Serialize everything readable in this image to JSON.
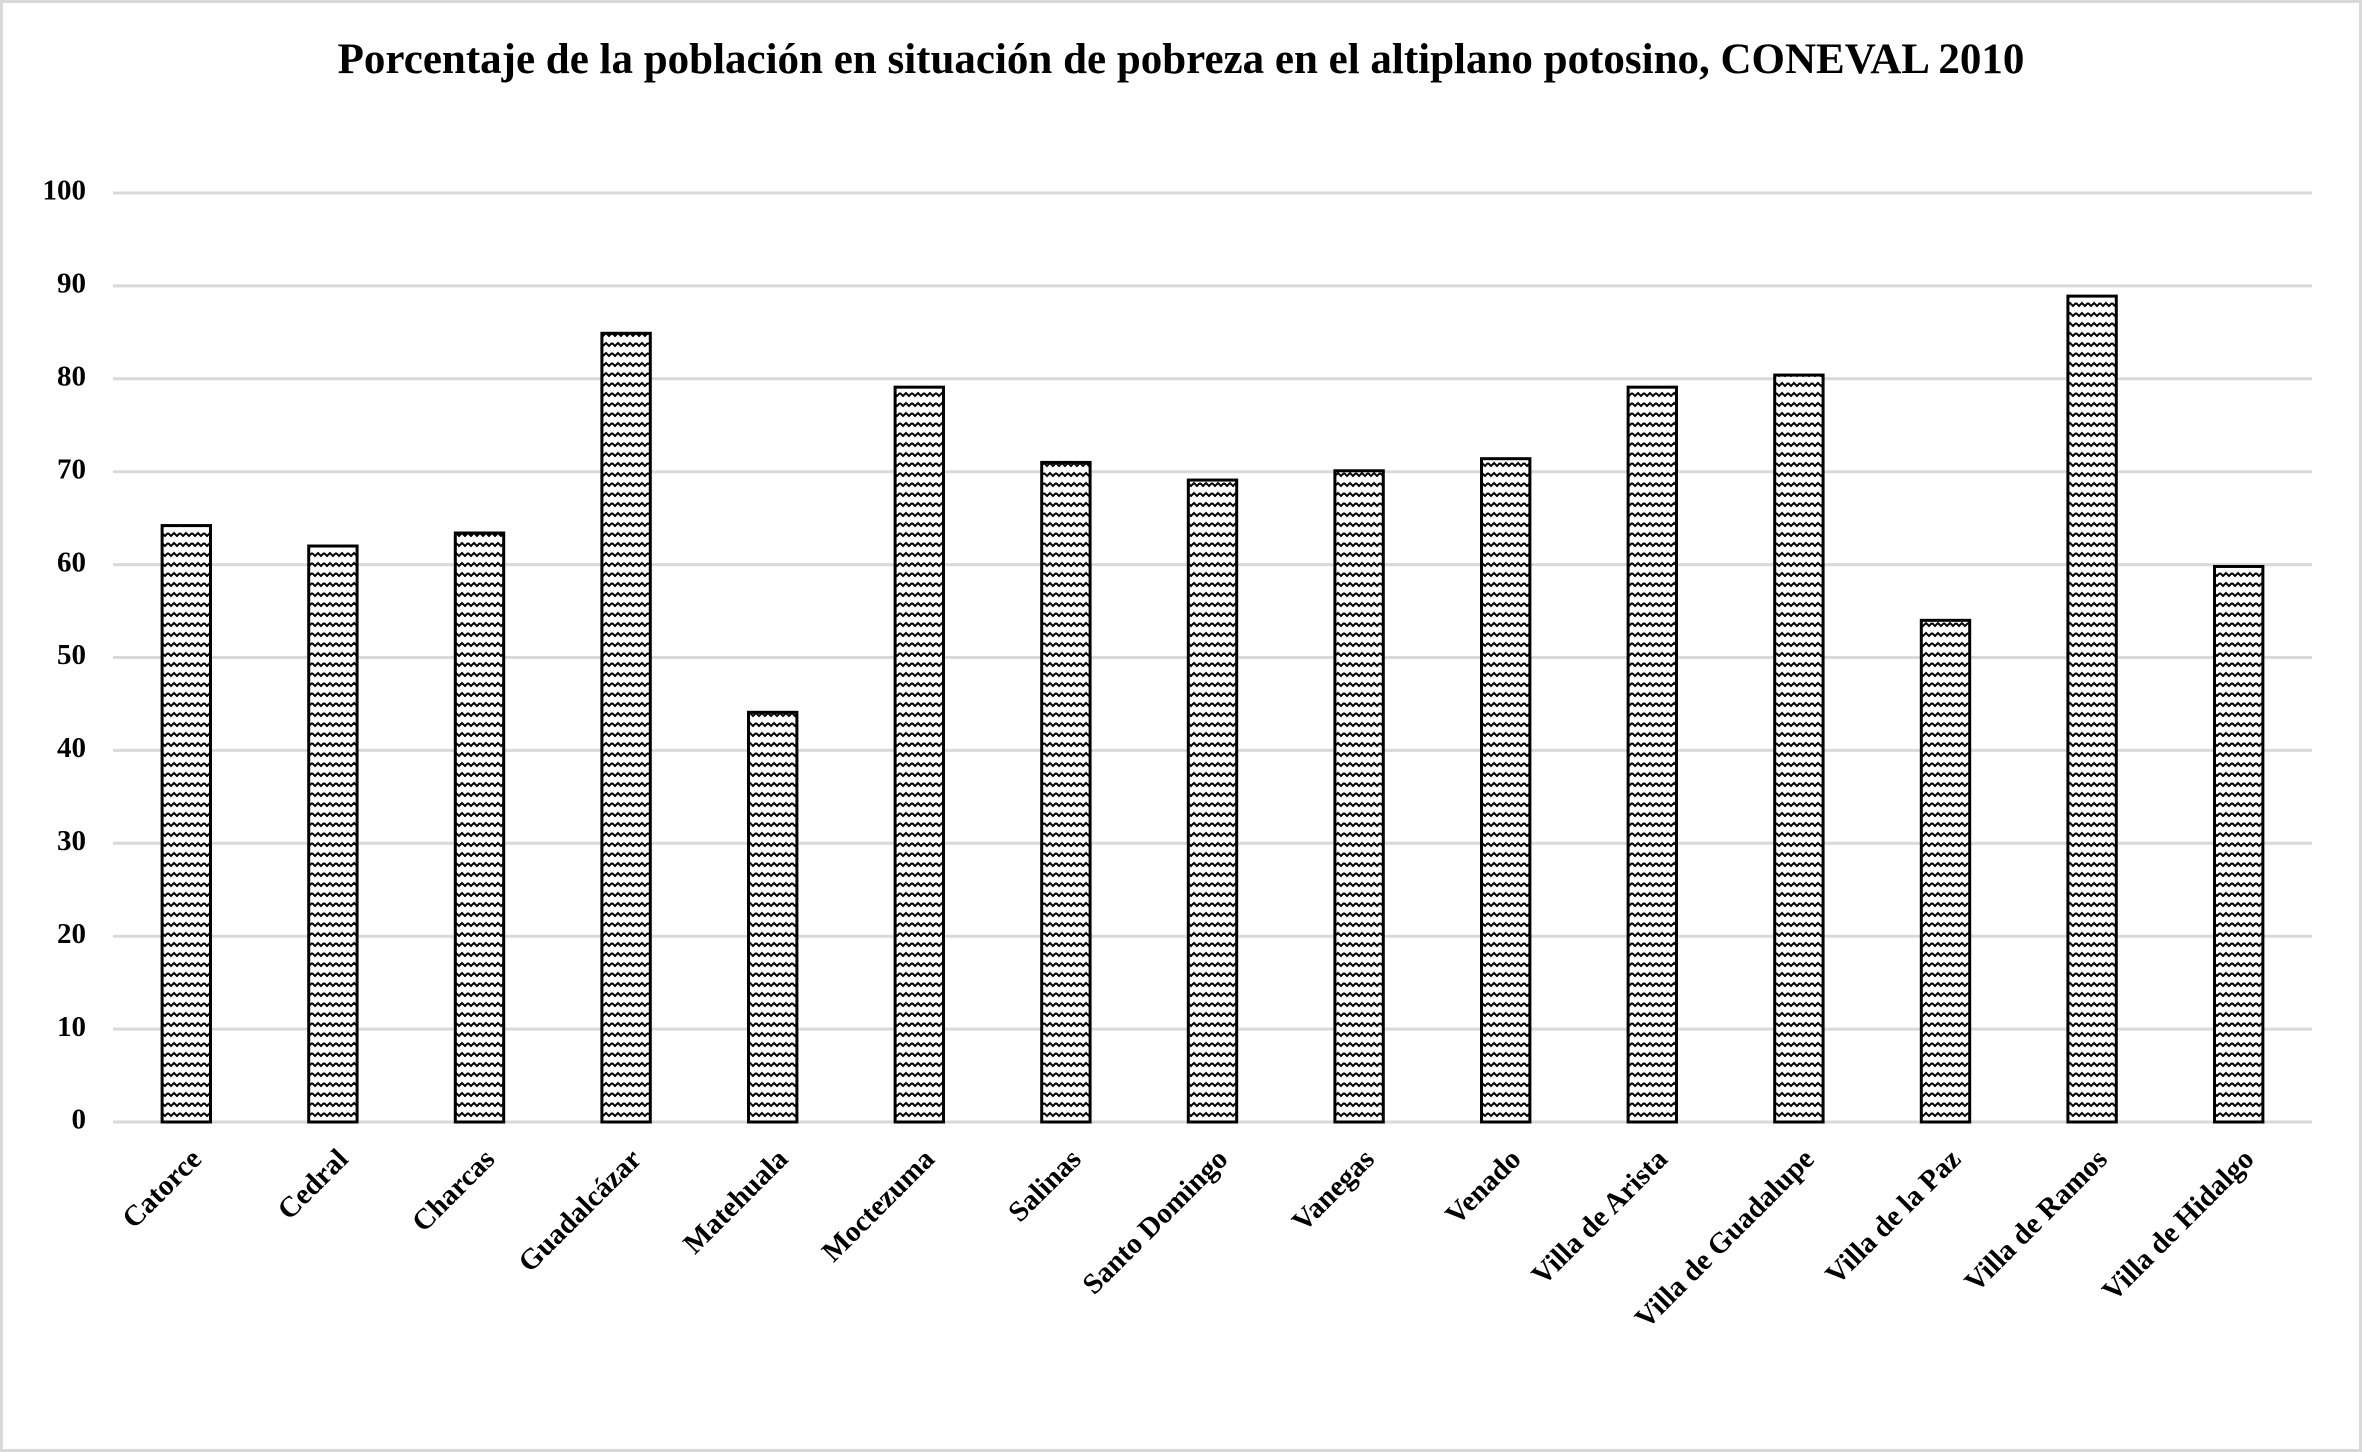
{
  "chart_data": {
    "type": "bar",
    "title": "Porcentaje de la población en situación de pobreza en el altiplano potosino, CONEVAL 2010",
    "categories": [
      "Catorce",
      "Cedral",
      "Charcas",
      "Guadalcázar",
      "Matehuala",
      "Moctezuma",
      "Salinas",
      "Santo Domingo",
      "Vanegas",
      "Venado",
      "Villa de Arista",
      "Villa de Guadalupe",
      "Villa de la Paz",
      "Villa de Ramos",
      "Villa de Hidalgo"
    ],
    "values": [
      64.2,
      62.0,
      63.4,
      84.9,
      44.1,
      79.1,
      71.0,
      69.1,
      70.1,
      71.4,
      79.1,
      80.4,
      54.0,
      88.9,
      59.8
    ],
    "color": "#000000",
    "ylim": [
      0,
      100
    ],
    "yticks": [
      0,
      10,
      20,
      30,
      40,
      50,
      60,
      70,
      80,
      90,
      100
    ],
    "grid": true
  }
}
